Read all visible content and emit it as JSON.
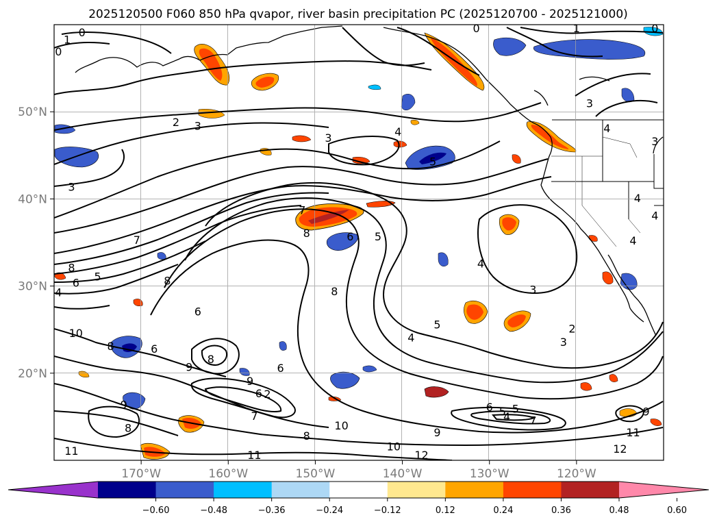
{
  "chart_data": {
    "type": "contour_map",
    "title": "2025120500 F060 850 hPa qvapor, river basin precipitation PC (2025120700 - 2025121000)",
    "region": {
      "lon_range": [
        -180,
        -110
      ],
      "lat_range": [
        10,
        60
      ]
    },
    "grid": true,
    "xlabel": "",
    "ylabel": "",
    "x_ticks": [
      {
        "lon": -170,
        "label": "170°W"
      },
      {
        "lon": -160,
        "label": "160°W"
      },
      {
        "lon": -150,
        "label": "150°W"
      },
      {
        "lon": -140,
        "label": "140°W"
      },
      {
        "lon": -130,
        "label": "130°W"
      },
      {
        "lon": -120,
        "label": "120°W"
      }
    ],
    "y_ticks": [
      {
        "lat": 50,
        "label": "50°N"
      },
      {
        "lat": 40,
        "label": "40°N"
      },
      {
        "lat": 30,
        "label": "30°N"
      },
      {
        "lat": 20,
        "label": "20°N"
      }
    ],
    "contour_labels": [
      {
        "lon": -176.8,
        "lat": 59.0,
        "text": "0"
      },
      {
        "lon": -178.5,
        "lat": 58.2,
        "text": "1"
      },
      {
        "lon": -179.5,
        "lat": 56.8,
        "text": "0"
      },
      {
        "lon": -166.0,
        "lat": 48.7,
        "text": "2"
      },
      {
        "lon": -163.5,
        "lat": 48.3,
        "text": "3"
      },
      {
        "lon": -178.0,
        "lat": 41.3,
        "text": "3"
      },
      {
        "lon": -148.5,
        "lat": 46.9,
        "text": "3"
      },
      {
        "lon": -140.5,
        "lat": 47.6,
        "text": "4"
      },
      {
        "lon": -136.5,
        "lat": 44.2,
        "text": "5"
      },
      {
        "lon": -120.0,
        "lat": 59.5,
        "text": "1"
      },
      {
        "lon": -131.5,
        "lat": 59.5,
        "text": "0"
      },
      {
        "lon": -111.0,
        "lat": 59.5,
        "text": "0"
      },
      {
        "lon": -118.5,
        "lat": 50.9,
        "text": "3"
      },
      {
        "lon": -116.5,
        "lat": 48.0,
        "text": "4"
      },
      {
        "lon": -111.0,
        "lat": 46.5,
        "text": "3"
      },
      {
        "lon": -170.5,
        "lat": 35.2,
        "text": "7"
      },
      {
        "lon": -178.0,
        "lat": 32.0,
        "text": "8"
      },
      {
        "lon": -177.5,
        "lat": 30.3,
        "text": "6"
      },
      {
        "lon": -175.0,
        "lat": 31.0,
        "text": "5"
      },
      {
        "lon": -179.5,
        "lat": 29.2,
        "text": "4"
      },
      {
        "lon": -167.0,
        "lat": 30.5,
        "text": "8"
      },
      {
        "lon": -151.0,
        "lat": 36.0,
        "text": "8"
      },
      {
        "lon": -146.0,
        "lat": 35.6,
        "text": "6"
      },
      {
        "lon": -142.8,
        "lat": 35.6,
        "text": "5"
      },
      {
        "lon": -151.5,
        "lat": 38.6,
        "text": "7"
      },
      {
        "lon": -163.5,
        "lat": 27.0,
        "text": "6"
      },
      {
        "lon": -147.8,
        "lat": 29.3,
        "text": "8"
      },
      {
        "lon": -136.0,
        "lat": 25.5,
        "text": "5"
      },
      {
        "lon": -139.0,
        "lat": 24.0,
        "text": "4"
      },
      {
        "lon": -131.0,
        "lat": 32.5,
        "text": "4"
      },
      {
        "lon": -125.0,
        "lat": 29.5,
        "text": "3"
      },
      {
        "lon": -113.5,
        "lat": 35.1,
        "text": "4"
      },
      {
        "lon": -113.0,
        "lat": 40.0,
        "text": "4"
      },
      {
        "lon": -111.0,
        "lat": 38.0,
        "text": "4"
      },
      {
        "lon": -120.5,
        "lat": 25.0,
        "text": "2"
      },
      {
        "lon": -121.5,
        "lat": 23.5,
        "text": "3"
      },
      {
        "lon": -177.5,
        "lat": 24.5,
        "text": "10"
      },
      {
        "lon": -173.5,
        "lat": 23.0,
        "text": "8"
      },
      {
        "lon": -168.5,
        "lat": 22.7,
        "text": "6"
      },
      {
        "lon": -164.5,
        "lat": 20.6,
        "text": "9"
      },
      {
        "lon": -162.0,
        "lat": 21.5,
        "text": "8"
      },
      {
        "lon": -157.5,
        "lat": 19.0,
        "text": "9"
      },
      {
        "lon": -156.5,
        "lat": 17.6,
        "text": "6"
      },
      {
        "lon": -155.5,
        "lat": 17.5,
        "text": "2"
      },
      {
        "lon": -154.0,
        "lat": 20.5,
        "text": "6"
      },
      {
        "lon": -157.0,
        "lat": 15.0,
        "text": "7"
      },
      {
        "lon": -172.0,
        "lat": 16.3,
        "text": "9"
      },
      {
        "lon": -171.5,
        "lat": 13.6,
        "text": "8"
      },
      {
        "lon": -151.0,
        "lat": 12.7,
        "text": "8"
      },
      {
        "lon": -147.0,
        "lat": 13.9,
        "text": "10"
      },
      {
        "lon": -141.0,
        "lat": 11.5,
        "text": "10"
      },
      {
        "lon": -137.8,
        "lat": 10.5,
        "text": "12"
      },
      {
        "lon": -178.0,
        "lat": 11.0,
        "text": "11"
      },
      {
        "lon": -157.0,
        "lat": 10.5,
        "text": "11"
      },
      {
        "lon": -136.0,
        "lat": 13.1,
        "text": "9"
      },
      {
        "lon": -113.5,
        "lat": 13.1,
        "text": "11"
      },
      {
        "lon": -115.0,
        "lat": 11.2,
        "text": "12"
      },
      {
        "lon": -125.0,
        "lat": 14.5,
        "text": "7"
      },
      {
        "lon": -128.5,
        "lat": 15.5,
        "text": "5"
      },
      {
        "lon": -127.0,
        "lat": 15.8,
        "text": "5"
      },
      {
        "lon": -130.0,
        "lat": 16.0,
        "text": "6"
      },
      {
        "lon": -128.0,
        "lat": 14.9,
        "text": "4"
      },
      {
        "lon": -112.0,
        "lat": 15.5,
        "text": "9"
      }
    ],
    "colorbar": {
      "ticks": [
        "−0.60",
        "−0.48",
        "−0.36",
        "−0.24",
        "−0.12",
        "0.12",
        "0.24",
        "0.36",
        "0.48",
        "0.60"
      ],
      "colors": [
        "#9932cc",
        "#00008b",
        "#3a5ccc",
        "#00bfff",
        "#add8f5",
        "#ffffff",
        "#ffe88f",
        "#ffa500",
        "#ff4500",
        "#b22222",
        "#ff88aa"
      ]
    }
  }
}
